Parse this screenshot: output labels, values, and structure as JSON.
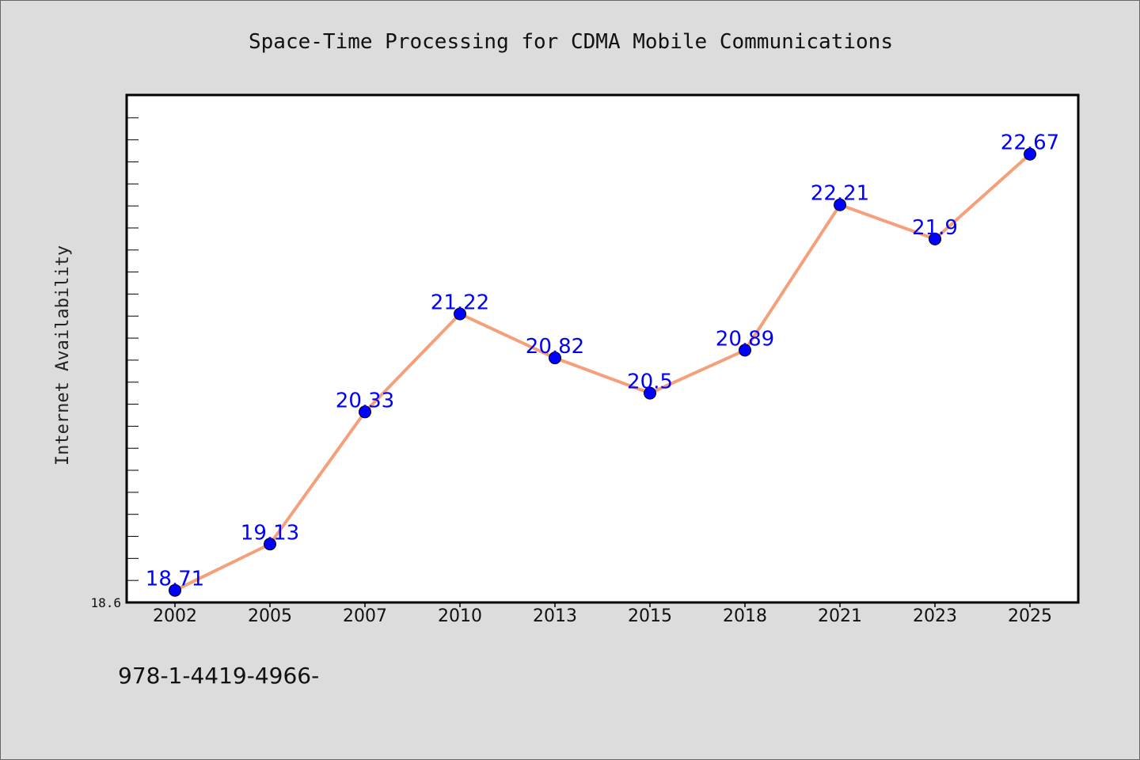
{
  "chart_data": {
    "type": "line",
    "title": "Space-Time Processing for CDMA Mobile Communications",
    "xlabel": "",
    "ylabel": "Internet Availability",
    "categories": [
      "2002",
      "2005",
      "2007",
      "2010",
      "2013",
      "2015",
      "2018",
      "2021",
      "2023",
      "2025"
    ],
    "series": [
      {
        "values": [
          18.71,
          19.13,
          20.33,
          21.22,
          20.82,
          20.5,
          20.89,
          22.21,
          21.9,
          22.67
        ],
        "labels": [
          "18.71",
          "19.13",
          "20.33",
          "21.22",
          "20.82",
          "20.5",
          "20.89",
          "22.21",
          "21.9",
          "22.67"
        ]
      }
    ],
    "y_tick_labels": [
      "18.6"
    ],
    "ylim": [
      18.6,
      23.2
    ],
    "grid": false,
    "line_color": "#f4a07a",
    "marker_color": "#0000ff",
    "label_color": "#0000ff"
  },
  "footnote": "978-1-4419-4966-"
}
